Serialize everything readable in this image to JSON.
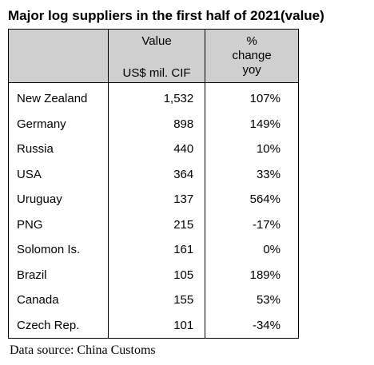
{
  "title": "Major log suppliers in the first half of 2021(value)",
  "header": {
    "value_line1": "Value",
    "value_line2": "US$ mil. CIF",
    "pct_line1": "%",
    "pct_line2": "change",
    "pct_line3": "yoy"
  },
  "rows": [
    {
      "country": "New Zealand",
      "value": "1,532",
      "change": "107%"
    },
    {
      "country": "Germany",
      "value": "898",
      "change": "149%"
    },
    {
      "country": "Russia",
      "value": "440",
      "change": "10%"
    },
    {
      "country": "USA",
      "value": "364",
      "change": "33%"
    },
    {
      "country": "Uruguay",
      "value": "137",
      "change": "564%"
    },
    {
      "country": "PNG",
      "value": "215",
      "change": "-17%"
    },
    {
      "country": "Solomon Is.",
      "value": "161",
      "change": "0%"
    },
    {
      "country": "Brazil",
      "value": "105",
      "change": "189%"
    },
    {
      "country": "Canada",
      "value": "155",
      "change": "53%"
    },
    {
      "country": "Czech Rep.",
      "value": "101",
      "change": "-34%"
    }
  ],
  "source": "Data source: China Customs",
  "colors": {
    "header_bg": "#cfcfcf",
    "text": "#000000"
  }
}
